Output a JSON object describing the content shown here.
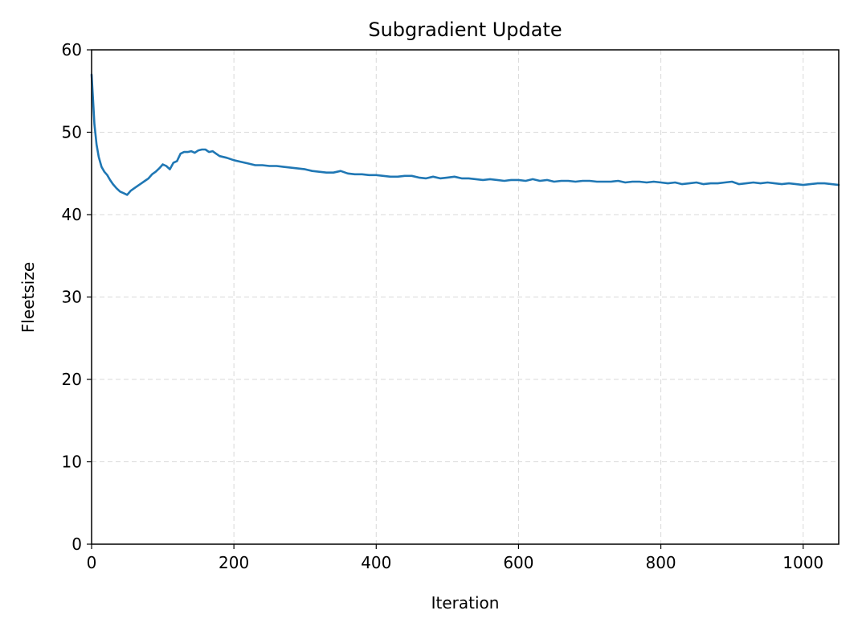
{
  "chart_data": {
    "type": "line",
    "title": "Subgradient Update",
    "xlabel": "Iteration",
    "ylabel": "Fleetsize",
    "xlim": [
      0,
      1050
    ],
    "ylim": [
      0,
      60
    ],
    "xticks": [
      0,
      200,
      400,
      600,
      800,
      1000
    ],
    "yticks": [
      0,
      10,
      20,
      30,
      40,
      50,
      60
    ],
    "xtick_labels": [
      "0",
      "200",
      "400",
      "600",
      "800",
      "1000"
    ],
    "ytick_labels": [
      "0",
      "10",
      "20",
      "30",
      "40",
      "50",
      "60"
    ],
    "grid": true,
    "series": [
      {
        "name": "Fleetsize",
        "color": "#1f77b4",
        "x": [
          0,
          2,
          4,
          7,
          10,
          14,
          18,
          22,
          26,
          30,
          35,
          40,
          45,
          50,
          55,
          60,
          65,
          70,
          75,
          80,
          85,
          90,
          95,
          100,
          105,
          110,
          115,
          120,
          125,
          130,
          135,
          140,
          145,
          150,
          155,
          160,
          165,
          170,
          175,
          180,
          190,
          200,
          210,
          220,
          230,
          240,
          250,
          260,
          270,
          280,
          290,
          300,
          310,
          320,
          330,
          340,
          350,
          360,
          370,
          380,
          390,
          400,
          410,
          420,
          430,
          440,
          450,
          460,
          470,
          480,
          490,
          500,
          510,
          520,
          530,
          540,
          550,
          560,
          570,
          580,
          590,
          600,
          610,
          620,
          630,
          640,
          650,
          660,
          670,
          680,
          690,
          700,
          710,
          720,
          730,
          740,
          750,
          760,
          770,
          780,
          790,
          800,
          810,
          820,
          830,
          840,
          850,
          860,
          870,
          880,
          890,
          900,
          910,
          920,
          930,
          940,
          950,
          960,
          970,
          980,
          990,
          1000,
          1010,
          1020,
          1030,
          1040,
          1050
        ],
        "y": [
          57,
          54,
          51,
          48.5,
          47,
          45.8,
          45.2,
          44.8,
          44.2,
          43.7,
          43.2,
          42.8,
          42.6,
          42.4,
          42.9,
          43.2,
          43.5,
          43.8,
          44.1,
          44.4,
          44.9,
          45.2,
          45.6,
          46.1,
          45.9,
          45.5,
          46.3,
          46.5,
          47.4,
          47.6,
          47.6,
          47.7,
          47.5,
          47.8,
          47.9,
          47.9,
          47.6,
          47.7,
          47.4,
          47.1,
          46.9,
          46.6,
          46.4,
          46.2,
          46.0,
          46.0,
          45.9,
          45.9,
          45.8,
          45.7,
          45.6,
          45.5,
          45.3,
          45.2,
          45.1,
          45.1,
          45.3,
          45.0,
          44.9,
          44.9,
          44.8,
          44.8,
          44.7,
          44.6,
          44.6,
          44.7,
          44.7,
          44.5,
          44.4,
          44.6,
          44.4,
          44.5,
          44.6,
          44.4,
          44.4,
          44.3,
          44.2,
          44.3,
          44.2,
          44.1,
          44.2,
          44.2,
          44.1,
          44.3,
          44.1,
          44.2,
          44.0,
          44.1,
          44.1,
          44.0,
          44.1,
          44.1,
          44.0,
          44.0,
          44.0,
          44.1,
          43.9,
          44.0,
          44.0,
          43.9,
          44.0,
          43.9,
          43.8,
          43.9,
          43.7,
          43.8,
          43.9,
          43.7,
          43.8,
          43.8,
          43.9,
          44.0,
          43.7,
          43.8,
          43.9,
          43.8,
          43.9,
          43.8,
          43.7,
          43.8,
          43.7,
          43.6,
          43.7,
          43.8,
          43.8,
          43.7,
          43.6
        ]
      }
    ]
  }
}
